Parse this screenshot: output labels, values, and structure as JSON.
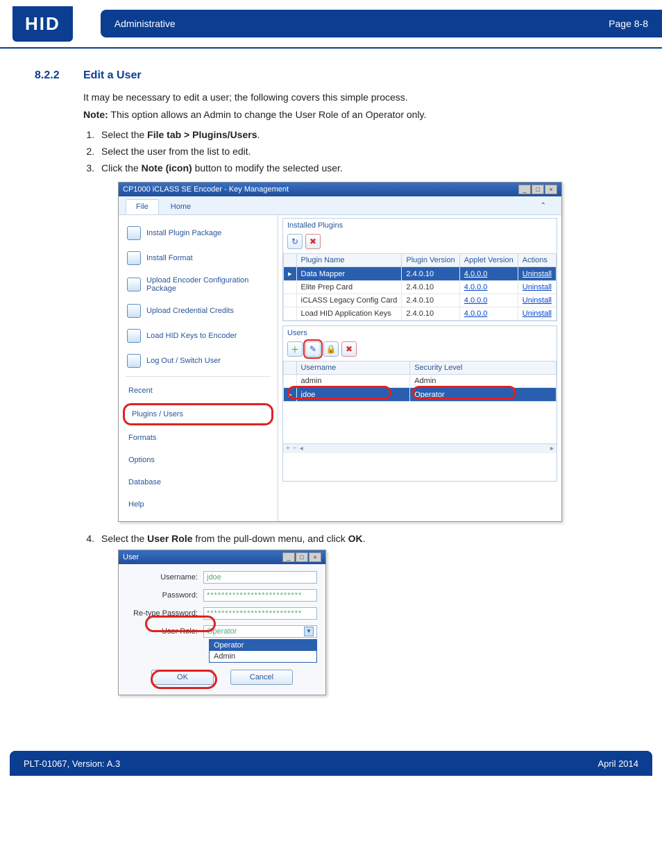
{
  "header": {
    "logo": "HID",
    "section": "Administrative",
    "page": "Page 8-8"
  },
  "section": {
    "number": "8.2.2",
    "title": "Edit a User"
  },
  "intro": {
    "line1": "It may be necessary to edit a user; the following covers this simple process.",
    "noteLabel": "Note:",
    "noteText": " This option allows an Admin to change the User Role of an Operator only."
  },
  "steps": {
    "s1a": "Select the ",
    "s1b": "File tab > Plugins/Users",
    "s1c": ".",
    "s2": "Select the user from the list to edit.",
    "s3a": "Click the ",
    "s3b": "Note (icon)",
    "s3c": " button to modify the selected user.",
    "s4a": "Select the ",
    "s4b": "User Role",
    "s4c": " from the pull-down menu, and click ",
    "s4d": "OK",
    "s4e": "."
  },
  "app": {
    "title": "CP1000 iCLASS SE Encoder - Key Management",
    "tabs": {
      "file": "File",
      "home": "Home"
    },
    "sidebar": {
      "installPkg": "Install Plugin Package",
      "installFmt": "Install Format",
      "uploadEnc": "Upload Encoder Configuration Package",
      "uploadCred": "Upload Credential Credits",
      "loadKeys": "Load HID Keys to Encoder",
      "logout": "Log Out / Switch User",
      "recent": "Recent",
      "plugins": "Plugins / Users",
      "formats": "Formats",
      "options": "Options",
      "database": "Database",
      "help": "Help"
    },
    "plugins": {
      "heading": "Installed Plugins",
      "cols": {
        "name": "Plugin Name",
        "pver": "Plugin Version",
        "aver": "Applet Version",
        "act": "Actions"
      },
      "rows": [
        {
          "name": "Data Mapper",
          "pver": "2.4.0.10",
          "aver": "4.0.0.0",
          "act": "Uninstall",
          "sel": true
        },
        {
          "name": "Elite Prep Card",
          "pver": "2.4.0.10",
          "aver": "4.0.0.0",
          "act": "Uninstall",
          "sel": false
        },
        {
          "name": "iCLASS Legacy Config Card",
          "pver": "2.4.0.10",
          "aver": "4.0.0.0",
          "act": "Uninstall",
          "sel": false
        },
        {
          "name": "Load HID Application Keys",
          "pver": "2.4.0.10",
          "aver": "4.0.0.0",
          "act": "Uninstall",
          "sel": false
        }
      ]
    },
    "users": {
      "heading": "Users",
      "cols": {
        "user": "Username",
        "level": "Security Level"
      },
      "rows": [
        {
          "user": "admin",
          "level": "Admin",
          "sel": false
        },
        {
          "user": "jdoe",
          "level": "Operator",
          "sel": true
        }
      ]
    }
  },
  "dialog": {
    "title": "User",
    "labels": {
      "user": "Username:",
      "pw": "Password:",
      "pw2": "Re-type Password:",
      "role": "User Role:"
    },
    "values": {
      "user": "jdoe",
      "pw": "**************************",
      "pw2": "**************************",
      "role": "Operator"
    },
    "options": {
      "op": "Operator",
      "ad": "Admin"
    },
    "buttons": {
      "ok": "OK",
      "cancel": "Cancel"
    }
  },
  "footer": {
    "left": "PLT-01067, Version: A.3",
    "right": "April 2014"
  }
}
